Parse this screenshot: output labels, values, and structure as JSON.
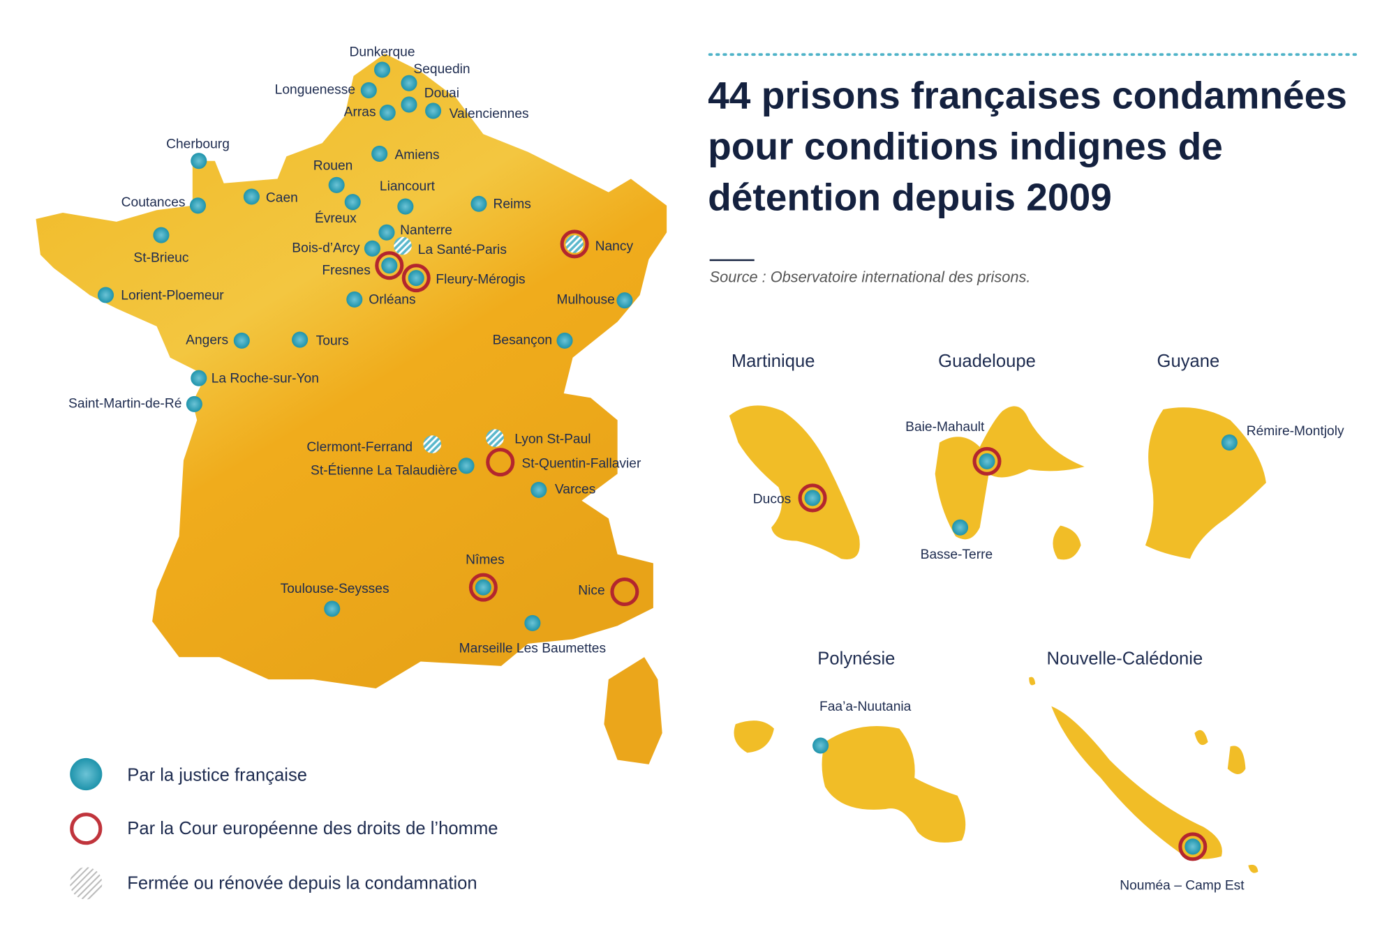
{
  "title": [
    "44 prisons françaises condamnées",
    "pour conditions indignes de",
    "détention depuis 2009"
  ],
  "source": "Source : Observatoire international des prisons.",
  "legend": [
    "Par la justice française",
    "Par la Cour européenne des droits de l’homme",
    "Fermée ou rénovée depuis la condamnation"
  ],
  "map": {
    "cities": [
      "Dunkerque",
      "Sequedin",
      "Longuenesse",
      "Douai",
      "Arras",
      "Valenciennes",
      "Cherbourg",
      "Amiens",
      "Rouen",
      "Liancourt",
      "Caen",
      "Coutances",
      "Évreux",
      "Reims",
      "St-Brieuc",
      "Nanterre",
      "Bois-d’Arcy",
      "La Santé-Paris",
      "Nancy",
      "Fresnes",
      "Fleury-Mérogis",
      "Lorient-Ploemeur",
      "Orléans",
      "Mulhouse",
      "Angers",
      "Tours",
      "Besançon",
      "La Roche-sur-Yon",
      "Saint-Martin-de-Ré",
      "Clermont-Ferrand",
      "Lyon St-Paul",
      "St-Quentin-Fallavier",
      "St-Étienne La Talaudière",
      "Varces",
      "Nîmes",
      "Nice",
      "Toulouse-Seysses",
      "Marseille Les Baumettes"
    ]
  },
  "territories": [
    {
      "name": "Martinique",
      "cities": [
        "Ducos"
      ]
    },
    {
      "name": "Guadeloupe",
      "cities": [
        "Baie-Mahault",
        "Basse-Terre"
      ]
    },
    {
      "name": "Guyane",
      "cities": [
        "Rémire-Montjoly"
      ]
    },
    {
      "name": "Polynésie",
      "cities": [
        "Faa’a-Nuutania"
      ]
    },
    {
      "name": "Nouvelle-Calédonie",
      "cities": [
        "Nouméa – Camp Est"
      ]
    }
  ]
}
